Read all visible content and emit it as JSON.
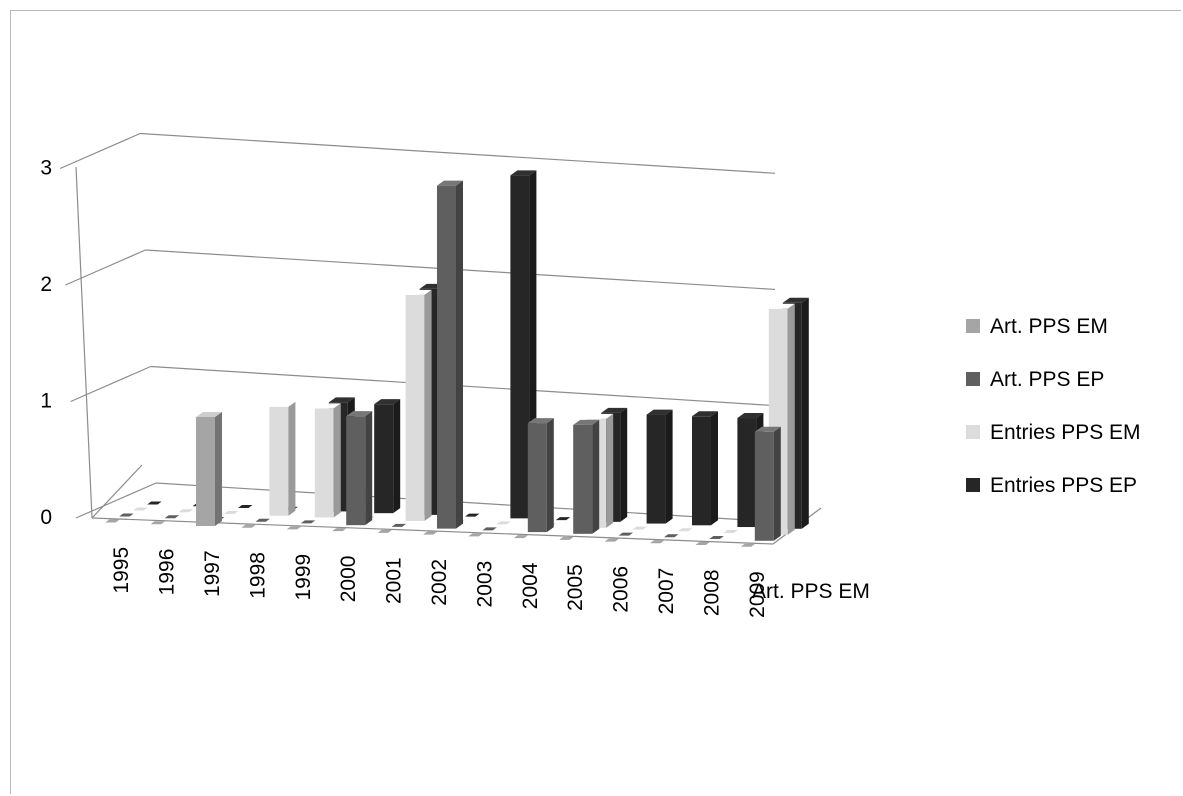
{
  "chart_data": {
    "type": "bar",
    "subtype": "3d-clustered-column",
    "title": "",
    "xlabel": "",
    "ylabel": "",
    "ylim": [
      0,
      3
    ],
    "yticks": [
      "0",
      "1",
      "2",
      "3"
    ],
    "grid": true,
    "legend_position": "right",
    "depth_axis_label": "Art. PPS EM",
    "categories": [
      "1995",
      "1996",
      "1997",
      "1998",
      "1999",
      "2000",
      "2001",
      "2002",
      "2003",
      "2004",
      "2005",
      "2006",
      "2007",
      "2008",
      "2009"
    ],
    "series": [
      {
        "name": "Art. PPS EM",
        "color": "#a5a5a5",
        "values": [
          0,
          0,
          1,
          0,
          0,
          0,
          0,
          0,
          0,
          0,
          0,
          0,
          0,
          0,
          0
        ]
      },
      {
        "name": "Art. PPS EP",
        "color": "#5f5f5f",
        "values": [
          0,
          0,
          0,
          0,
          0,
          1,
          0,
          3,
          0,
          1,
          1,
          0,
          0,
          0,
          1
        ]
      },
      {
        "name": "Entries PPS EM",
        "color": "#dcdcdc",
        "values": [
          0,
          0,
          0,
          1,
          1,
          0,
          2,
          0,
          0,
          0,
          1,
          0,
          0,
          0,
          2
        ]
      },
      {
        "name": "Entries PPS EP",
        "color": "#262626",
        "values": [
          0,
          0,
          0,
          0,
          1,
          1,
          2,
          0,
          3,
          0,
          1,
          1,
          1,
          1,
          2
        ]
      }
    ]
  }
}
